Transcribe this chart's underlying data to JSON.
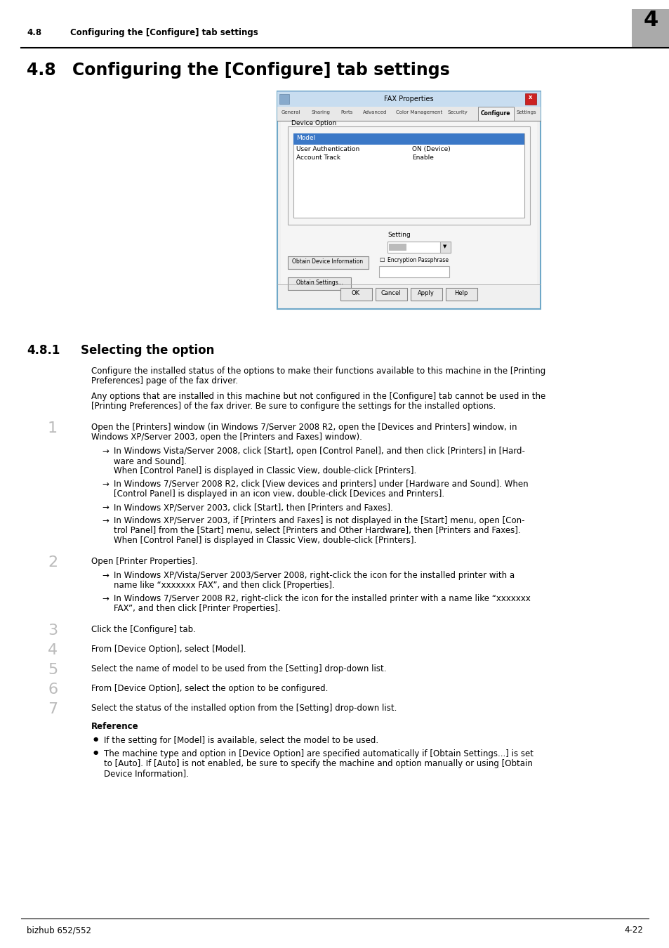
{
  "page_bg": "#ffffff",
  "header_section": "4.8",
  "header_title": "Configuring the [Configure] tab settings",
  "header_chapter_num": "4",
  "header_chapter_bg": "#aaaaaa",
  "footer_left": "bizhub 652/552",
  "footer_right": "4-22",
  "section_num": "4.8",
  "section_title": "Configuring the [Configure] tab settings",
  "subsection_num": "4.8.1",
  "subsection_title": "Selecting the option",
  "para1_line1": "Configure the installed status of the options to make their functions available to this machine in the [Printing",
  "para1_line2": "Preferences] page of the fax driver.",
  "para2_line1": "Any options that are installed in this machine but not configured in the [Configure] tab cannot be used in the",
  "para2_line2": "[Printing Preferences] of the fax driver. Be sure to configure the settings for the installed options.",
  "step1_line1": "Open the [Printers] window (in Windows 7/Server 2008 R2, open the [Devices and Printers] window, in",
  "step1_line2": "Windows XP/Server 2003, open the [Printers and Faxes] window).",
  "b1_l1": "In Windows Vista/Server 2008, click [Start], open [Control Panel], and then click [Printers] in [Hard-",
  "b1_l2": "ware and Sound].",
  "b1_l3": "When [Control Panel] is displayed in Classic View, double-click [Printers].",
  "b2_l1": "In Windows 7/Server 2008 R2, click [View devices and printers] under [Hardware and Sound]. When",
  "b2_l2": "[Control Panel] is displayed in an icon view, double-click [Devices and Printers].",
  "b3_l1": "In Windows XP/Server 2003, click [Start], then [Printers and Faxes].",
  "b4_l1": "In Windows XP/Server 2003, if [Printers and Faxes] is not displayed in the [Start] menu, open [Con-",
  "b4_l2": "trol Panel] from the [Start] menu, select [Printers and Other Hardware], then [Printers and Faxes].",
  "b4_l3": "When [Control Panel] is displayed in Classic View, double-click [Printers].",
  "step2": "Open [Printer Properties].",
  "b5_l1": "In Windows XP/Vista/Server 2003/Server 2008, right-click the icon for the installed printer with a",
  "b5_l2": "name like “xxxxxxx FAX”, and then click [Properties].",
  "b6_l1": "In Windows 7/Server 2008 R2, right-click the icon for the installed printer with a name like “xxxxxxx",
  "b6_l2": "FAX”, and then click [Printer Properties].",
  "step3": "Click the [Configure] tab.",
  "step4": "From [Device Option], select [Model].",
  "step5": "Select the name of model to be used from the [Setting] drop-down list.",
  "step6": "From [Device Option], select the option to be configured.",
  "step7": "Select the status of the installed option from the [Setting] drop-down list.",
  "ref_label": "Reference",
  "ref1": "If the setting for [Model] is available, select the model to be used.",
  "ref2_l1": "The machine type and option in [Device Option] are specified automatically if [Obtain Settings...] is set",
  "ref2_l2": "to [Auto]. If [Auto] is not enabled, be sure to specify the machine and option manually or using [Obtain",
  "ref2_l3": "Device Information]."
}
